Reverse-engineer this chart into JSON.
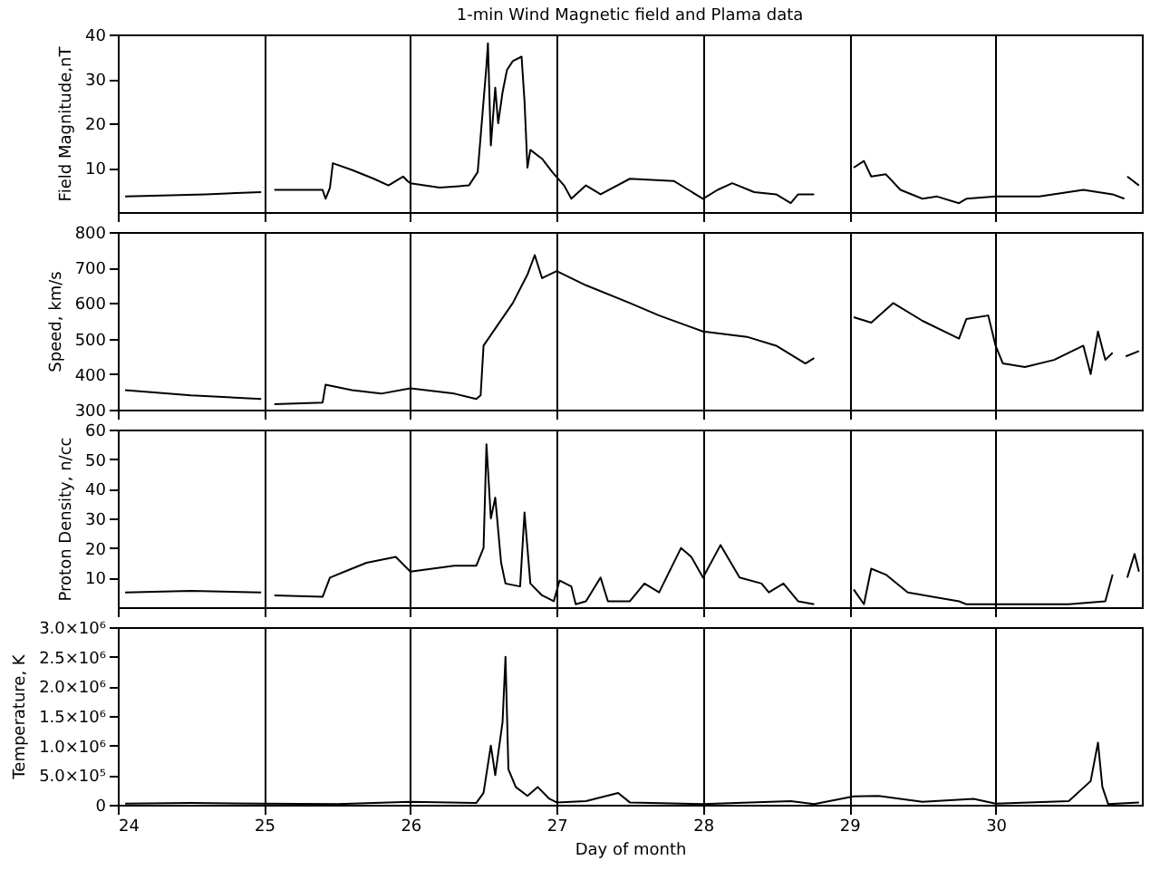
{
  "chart_data": [
    {
      "type": "line",
      "title": "1-min Wind Magnetic field and Plama data",
      "ylabel": "Field Magnitude,nT",
      "xlim": [
        24,
        31
      ],
      "xticks": [
        24,
        25,
        26,
        27,
        28,
        29,
        30
      ],
      "ylim": [
        0,
        40
      ],
      "yticks": [
        10,
        20,
        30,
        40
      ],
      "grid": "x",
      "tick_labels": "y",
      "series": [
        {
          "color": "#000000",
          "x": [
            24.05,
            24.3,
            24.6,
            24.98,
            25.0,
            25.07,
            25.4,
            25.42,
            25.45,
            25.47,
            25.6,
            25.75,
            25.85,
            25.95,
            25.98,
            26.0,
            26.2,
            26.4,
            26.46,
            26.52,
            26.53,
            26.55,
            26.58,
            26.6,
            26.63,
            26.66,
            26.7,
            26.76,
            26.78,
            26.8,
            26.82,
            26.9,
            26.97,
            27.05,
            27.1,
            27.2,
            27.3,
            27.5,
            27.8,
            27.9,
            28.0,
            28.1,
            28.2,
            28.35,
            28.5,
            28.6,
            28.65,
            28.76,
            28.9,
            29.03,
            29.1,
            29.15,
            29.25,
            29.35,
            29.5,
            29.6,
            29.75,
            29.8,
            30.0,
            30.3,
            30.6,
            30.8,
            30.88,
            30.89,
            30.9,
            30.98
          ],
          "values": [
            3.5,
            3.7,
            4,
            4.5,
            null,
            5,
            5,
            3,
            5.5,
            11,
            9.5,
            7.5,
            6,
            8,
            7,
            6.5,
            5.5,
            6,
            9,
            33,
            38,
            15,
            28,
            20,
            27,
            32,
            34,
            35,
            25,
            10,
            14,
            12,
            9,
            6,
            3,
            6,
            4,
            7.5,
            7,
            5,
            3,
            5,
            6.5,
            4.5,
            4,
            2,
            4,
            4,
            null,
            10,
            11.5,
            8,
            8.5,
            5,
            3,
            3.5,
            2,
            3,
            3.5,
            3.5,
            5,
            4,
            3,
            null,
            8,
            6
          ]
        }
      ]
    },
    {
      "type": "line",
      "ylabel": "Speed, km/s",
      "xlim": [
        24,
        31
      ],
      "xticks": [
        24,
        25,
        26,
        27,
        28,
        29,
        30
      ],
      "ylim": [
        300,
        800
      ],
      "yticks": [
        300,
        400,
        500,
        600,
        700,
        800
      ],
      "grid": "x",
      "tick_labels": "y",
      "series": [
        {
          "color": "#000000",
          "x": [
            24.05,
            24.5,
            24.98,
            25.0,
            25.07,
            25.4,
            25.42,
            25.6,
            25.8,
            26.0,
            26.3,
            26.45,
            26.48,
            26.5,
            26.6,
            26.7,
            26.8,
            26.85,
            26.9,
            27.0,
            27.2,
            27.5,
            27.7,
            28.0,
            28.3,
            28.5,
            28.7,
            28.76,
            28.9,
            29.03,
            29.15,
            29.3,
            29.5,
            29.75,
            29.8,
            29.95,
            30.0,
            30.05,
            30.2,
            30.4,
            30.6,
            30.65,
            30.7,
            30.75,
            30.8,
            30.85,
            30.89,
            30.98
          ],
          "values": [
            355,
            340,
            330,
            null,
            315,
            320,
            370,
            355,
            345,
            360,
            345,
            330,
            340,
            480,
            540,
            600,
            680,
            735,
            670,
            690,
            650,
            600,
            565,
            520,
            505,
            480,
            430,
            445,
            null,
            560,
            545,
            600,
            550,
            500,
            555,
            565,
            480,
            430,
            420,
            440,
            480,
            400,
            520,
            440,
            460,
            null,
            450,
            465
          ]
        }
      ]
    },
    {
      "type": "line",
      "ylabel": "Proton Density, n/cc",
      "xlim": [
        24,
        31
      ],
      "xticks": [
        24,
        25,
        26,
        27,
        28,
        29,
        30
      ],
      "ylim": [
        0,
        60
      ],
      "yticks": [
        10,
        20,
        30,
        40,
        50,
        60
      ],
      "grid": "x",
      "tick_labels": "y",
      "series": [
        {
          "color": "#000000",
          "x": [
            24.05,
            24.5,
            24.98,
            25.0,
            25.07,
            25.4,
            25.45,
            25.6,
            25.7,
            25.9,
            26.0,
            26.3,
            26.45,
            26.5,
            26.52,
            26.55,
            26.58,
            26.62,
            26.65,
            26.75,
            26.78,
            26.82,
            26.9,
            26.98,
            27.02,
            27.1,
            27.13,
            27.2,
            27.3,
            27.35,
            27.5,
            27.6,
            27.7,
            27.85,
            27.92,
            28.0,
            28.12,
            28.25,
            28.4,
            28.45,
            28.55,
            28.65,
            28.76,
            28.9,
            29.03,
            29.1,
            29.15,
            29.25,
            29.4,
            29.75,
            29.8,
            30.5,
            30.75,
            30.8,
            30.85,
            30.9,
            30.95,
            30.98
          ],
          "values": [
            5,
            5.5,
            5,
            null,
            4,
            3.5,
            10,
            13,
            15,
            17,
            12,
            14,
            14,
            20,
            55,
            30,
            37,
            15,
            8,
            7,
            32,
            8,
            4,
            2,
            9,
            7,
            1,
            2,
            10,
            2,
            2,
            8,
            5,
            20,
            17,
            10,
            21,
            10,
            8,
            5,
            8,
            2,
            1,
            null,
            6,
            1,
            13,
            11,
            5,
            2,
            1,
            1,
            2,
            11,
            null,
            10,
            18,
            12
          ]
        }
      ]
    },
    {
      "type": "line",
      "ylabel": "Temperature, K",
      "xlabel": "Day of month",
      "xlim": [
        24,
        31
      ],
      "xticks": [
        24,
        25,
        26,
        27,
        28,
        29,
        30
      ],
      "ylim": [
        0,
        3000000
      ],
      "yticks": [
        0,
        {
          "value": 500000,
          "label": "5.0×10⁵"
        },
        {
          "value": 1000000,
          "label": "1.0×10⁶"
        },
        {
          "value": 1500000,
          "label": "1.5×10⁶"
        },
        {
          "value": 2000000,
          "label": "2.0×10⁶"
        },
        {
          "value": 2500000,
          "label": "2.5×10⁶"
        },
        {
          "value": 3000000,
          "label": "3.0×10⁶"
        }
      ],
      "grid": "x",
      "series": [
        {
          "color": "#000000",
          "x": [
            24.05,
            24.5,
            24.98,
            25.5,
            26.0,
            26.45,
            26.5,
            26.55,
            26.58,
            26.63,
            26.65,
            26.67,
            26.72,
            26.8,
            26.87,
            26.95,
            27.0,
            27.2,
            27.42,
            27.5,
            28.0,
            28.6,
            28.76,
            29.03,
            29.2,
            29.5,
            29.85,
            30.0,
            30.5,
            30.65,
            30.7,
            30.73,
            30.77,
            30.98
          ],
          "values": [
            20000,
            30000,
            20000,
            10000,
            50000,
            30000,
            200000,
            1000000,
            500000,
            1400000,
            2500000,
            600000,
            300000,
            150000,
            300000,
            100000,
            40000,
            60000,
            200000,
            40000,
            10000,
            60000,
            10000,
            140000,
            150000,
            50000,
            100000,
            20000,
            60000,
            400000,
            1050000,
            300000,
            10000,
            40000
          ]
        }
      ]
    }
  ]
}
